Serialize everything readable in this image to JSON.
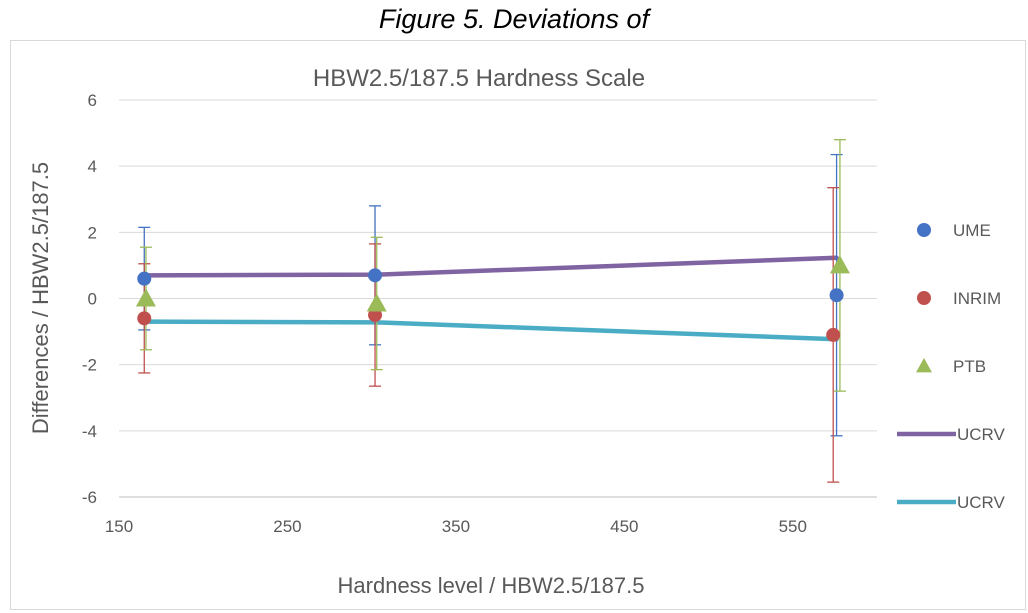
{
  "figure_caption": "Figure 5. Deviations of",
  "chart_data": {
    "type": "scatter",
    "title": "HBW2.5/187.5 Hardness Scale",
    "xlabel": "Hardness level / HBW2.5/187.5",
    "ylabel": "Differences / HBW2.5/187.5",
    "xlim": [
      150,
      600
    ],
    "ylim": [
      -6,
      6
    ],
    "xticks": [
      150,
      250,
      350,
      450,
      550
    ],
    "yticks": [
      -6,
      -4,
      -2,
      0,
      2,
      4,
      6
    ],
    "grid": "horizontal",
    "legend_position": "right",
    "series": [
      {
        "name": "UME",
        "kind": "points",
        "marker": "circle",
        "color": "#4472c4",
        "points": [
          {
            "x": 165,
            "y": 0.6,
            "err_lo": 1.55,
            "err_hi": 1.55
          },
          {
            "x": 302,
            "y": 0.7,
            "err_lo": 2.1,
            "err_hi": 2.1
          },
          {
            "x": 576,
            "y": 0.1,
            "err_lo": 4.25,
            "err_hi": 4.25
          }
        ]
      },
      {
        "name": "INRIM",
        "kind": "points",
        "marker": "circle",
        "color": "#c0504d",
        "points": [
          {
            "x": 165,
            "y": -0.6,
            "err_lo": 1.65,
            "err_hi": 1.65
          },
          {
            "x": 302,
            "y": -0.5,
            "err_lo": 2.15,
            "err_hi": 2.15
          },
          {
            "x": 574,
            "y": -1.1,
            "err_lo": 4.45,
            "err_hi": 4.45
          }
        ]
      },
      {
        "name": "PTB",
        "kind": "points",
        "marker": "triangle",
        "color": "#9bbb59",
        "points": [
          {
            "x": 166,
            "y": 0.0,
            "err_lo": 1.55,
            "err_hi": 1.55
          },
          {
            "x": 303,
            "y": -0.15,
            "err_lo": 2.0,
            "err_hi": 2.0
          },
          {
            "x": 578,
            "y": 1.0,
            "err_lo": 3.8,
            "err_hi": 3.8
          }
        ]
      },
      {
        "name": "UCRV",
        "kind": "line",
        "color": "#8064a2",
        "points": [
          {
            "x": 165,
            "y": 0.7
          },
          {
            "x": 302,
            "y": 0.72
          },
          {
            "x": 576,
            "y": 1.23
          }
        ]
      },
      {
        "name": "UCRV",
        "kind": "line",
        "color": "#4bacc6",
        "points": [
          {
            "x": 165,
            "y": -0.7
          },
          {
            "x": 302,
            "y": -0.72
          },
          {
            "x": 576,
            "y": -1.23
          }
        ]
      }
    ]
  }
}
